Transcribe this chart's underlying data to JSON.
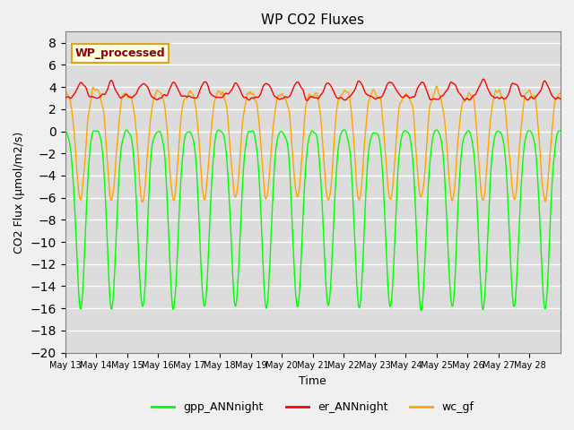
{
  "title": "WP CO2 Fluxes",
  "xlabel": "Time",
  "ylabel": "CO2 Flux (μmol/m2/s)",
  "ylim": [
    -20,
    9
  ],
  "yticks": [
    -20,
    -18,
    -16,
    -14,
    -12,
    -10,
    -8,
    -6,
    -4,
    -2,
    0,
    2,
    4,
    6,
    8
  ],
  "annotation": "WP_processed",
  "legend_entries": [
    "gpp_ANNnight",
    "er_ANNnight",
    "wc_gf"
  ],
  "colors": {
    "gpp": "#00FF00",
    "er": "#FF0000",
    "wc": "#FFA500"
  },
  "n_days": 16,
  "bg_color": "#DCDCDC",
  "grid_color": "white",
  "linewidth": 1.0,
  "day_labels": [
    "May 13",
    "May 14",
    "May 15",
    "May 16",
    "May 17",
    "May 18",
    "May 19",
    "May 20",
    "May 21",
    "May 22",
    "May 23",
    "May 24",
    "May 25",
    "May 26",
    "May 27",
    "May 28"
  ]
}
